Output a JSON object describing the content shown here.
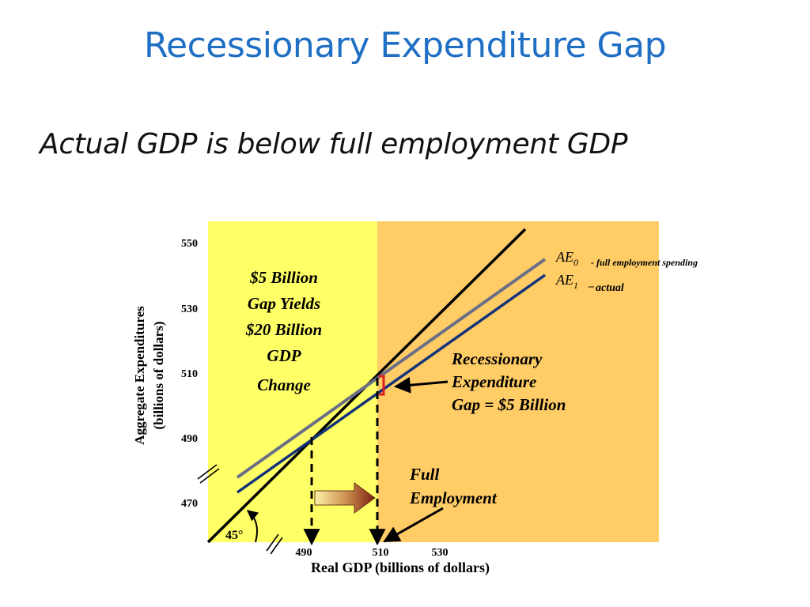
{
  "slide": {
    "title": "Recessionary Expenditure Gap",
    "subtitle": "Actual GDP is below full employment GDP"
  },
  "colors": {
    "title": "#1f6fc4",
    "left_region": "#ffff66",
    "right_region": "#ffcc66",
    "ae0_line": "#6b6f86",
    "ae1_line": "#12327a",
    "diagonal": "#000000"
  },
  "chart_data": {
    "type": "line",
    "xlabel": "Real GDP (billions of dollars)",
    "ylabel": "Aggregate Expenditures",
    "ylabel2": "(billions of dollars)",
    "x_ticks": [
      "490",
      "510",
      "530"
    ],
    "y_ticks": [
      "550",
      "530",
      "510",
      "490",
      "470"
    ],
    "series": [
      {
        "name": "AE0",
        "note": "- full employment spending",
        "x": [
          486,
          530
        ],
        "y": [
          476,
          520
        ]
      },
      {
        "name": "AE1",
        "note": "actual",
        "x": [
          486,
          530
        ],
        "y": [
          472,
          514
        ]
      },
      {
        "name": "45° line",
        "x": [
          480,
          530
        ],
        "y": [
          480,
          530
        ]
      }
    ],
    "regions": {
      "left_end_x": 510
    },
    "annotations": {
      "multiplier_text": [
        "$5 Billion",
        "Gap Yields",
        "$20 Billion",
        "GDP",
        "Change"
      ],
      "gap_text": [
        "Recessionary",
        "Expenditure",
        "Gap = $5 Billion"
      ],
      "full_employment_text": [
        "Full",
        "Employment"
      ],
      "angle_label": "45°"
    }
  }
}
